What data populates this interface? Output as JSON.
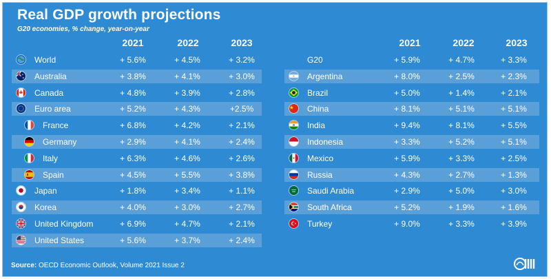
{
  "header": {
    "title": "Real GDP growth projections",
    "subtitle": "G20 economies, % change, year-on-year",
    "years": [
      "2021",
      "2022",
      "2023"
    ]
  },
  "left_table": [
    {
      "name": "World",
      "flag": "globe-icon",
      "v2021": "+ 5.6%",
      "v2022": "+ 4.5%",
      "v2023": "+ 3.2%"
    },
    {
      "name": "Australia",
      "flag": "australia-flag-icon",
      "v2021": "+ 3.8%",
      "v2022": "+ 4.1%",
      "v2023": "+ 3.0%"
    },
    {
      "name": "Canada",
      "flag": "canada-flag-icon",
      "v2021": "+ 4.8%",
      "v2022": "+  3.9%",
      "v2023": "+ 2.8%"
    },
    {
      "name": "Euro area",
      "flag": "eu-flag-icon",
      "v2021": "+ 5.2%",
      "v2022": "+ 4.3%",
      "v2023": "+2.5%"
    },
    {
      "name": "France",
      "flag": "france-flag-icon",
      "v2021": "+ 6.8%",
      "v2022": "+ 4.2%",
      "v2023": "+ 2.1%"
    },
    {
      "name": "Germany",
      "flag": "germany-flag-icon",
      "v2021": "+ 2.9%",
      "v2022": "+ 4.1%",
      "v2023": "+ 2.4%"
    },
    {
      "name": "Italy",
      "flag": "italy-flag-icon",
      "v2021": "+ 6.3%",
      "v2022": "+ 4.6%",
      "v2023": "+ 2.6%"
    },
    {
      "name": "Spain",
      "flag": "spain-flag-icon",
      "v2021": "+ 4.5%",
      "v2022": "+ 5.5%",
      "v2023": "+ 3.8%"
    },
    {
      "name": "Japan",
      "flag": "japan-flag-icon",
      "v2021": "+ 1.8%",
      "v2022": "+ 3.4%",
      "v2023": "+ 1.1%"
    },
    {
      "name": "Korea",
      "flag": "korea-flag-icon",
      "v2021": "+ 4.0%",
      "v2022": "+ 3.0%",
      "v2023": "+ 2.7%"
    },
    {
      "name": "United Kingdom",
      "flag": "uk-flag-icon",
      "v2021": "+ 6.9%",
      "v2022": "+ 4.7%",
      "v2023": "+ 2.1%"
    },
    {
      "name": "United States",
      "flag": "us-flag-icon",
      "v2021": "+ 5.6%",
      "v2022": "+ 3.7%",
      "v2023": "+ 2.4%"
    }
  ],
  "right_table": [
    {
      "name": "G20",
      "flag": "",
      "v2021": "+ 5.9%",
      "v2022": "+ 4.7%",
      "v2023": "+  3.3%"
    },
    {
      "name": "Argentina",
      "flag": "argentina-flag-icon",
      "v2021": "+ 8.0%",
      "v2022": "+ 2.5%",
      "v2023": "+ 2.3%"
    },
    {
      "name": "Brazil",
      "flag": "brazil-flag-icon",
      "v2021": "+ 5.0%",
      "v2022": "+ 1.4%",
      "v2023": "+ 2.1%"
    },
    {
      "name": "China",
      "flag": "china-flag-icon",
      "v2021": "+ 8.1%",
      "v2022": "+ 5.1%",
      "v2023": "+ 5.1%"
    },
    {
      "name": "India",
      "flag": "india-flag-icon",
      "v2021": "+ 9.4%",
      "v2022": "+ 8.1%",
      "v2023": "+ 5.5%"
    },
    {
      "name": "Indonesia",
      "flag": "indonesia-flag-icon",
      "v2021": "+ 3.3%",
      "v2022": "+ 5.2%",
      "v2023": "+ 5.1%"
    },
    {
      "name": "Mexico",
      "flag": "mexico-flag-icon",
      "v2021": "+ 5.9%",
      "v2022": "+ 3.3%",
      "v2023": "+ 2.5%"
    },
    {
      "name": "Russia",
      "flag": "russia-flag-icon",
      "v2021": "+ 4.3%",
      "v2022": "+ 2.7%",
      "v2023": "+ 1.3%"
    },
    {
      "name": "Saudi Arabia",
      "flag": "saudi-arabia-flag-icon",
      "v2021": "+ 2.9%",
      "v2022": "+ 5.0%",
      "v2023": "+ 3.0%"
    },
    {
      "name": "South Africa",
      "flag": "south-africa-flag-icon",
      "v2021": "+ 5.2%",
      "v2022": "+ 1.9%",
      "v2023": "+ 1.6%"
    },
    {
      "name": "Turkey",
      "flag": "turkey-flag-icon",
      "v2021": "+  9.0%",
      "v2022": "+ 3.3%",
      "v2023": "+ 3.9%"
    }
  ],
  "footer": {
    "source_label": "Source:",
    "source_text": " OECD Economic Outlook, Volume 2021 Issue 2",
    "logo": "oecd-logo-icon"
  },
  "colors": {
    "background": "#2e8bd3",
    "stripe": "#5b9fd9",
    "text": "#ffffff"
  }
}
